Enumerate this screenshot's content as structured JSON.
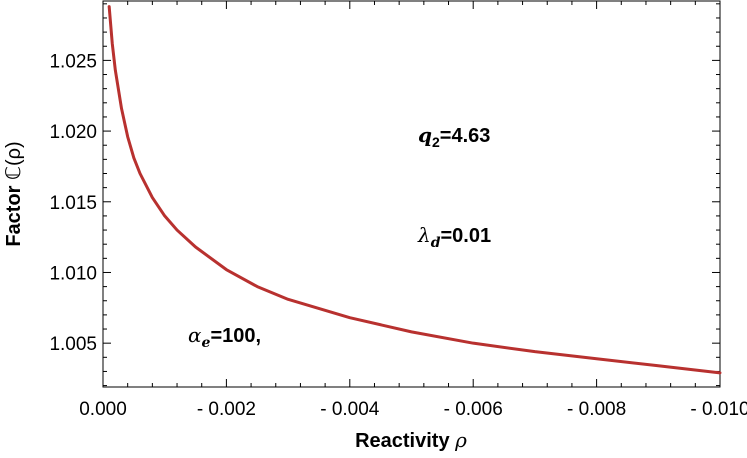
{
  "chart_data": {
    "type": "line",
    "title": "",
    "xlabel": "Reactivity",
    "xlabel_symbol": "ρ",
    "ylabel": "Factor",
    "ylabel_symbol": "ℂ(ρ)",
    "xlim": [
      0.0,
      -0.01
    ],
    "ylim": [
      1.0019,
      1.0292
    ],
    "xticks": [
      0.0,
      -0.002,
      -0.004,
      -0.006,
      -0.008,
      -0.01
    ],
    "xtick_labels": [
      "0.000",
      "- 0.002",
      "- 0.004",
      "- 0.006",
      "- 0.008",
      "- 0.010"
    ],
    "yticks": [
      1.005,
      1.01,
      1.015,
      1.02,
      1.025
    ],
    "ytick_labels": [
      "1.005",
      "1.010",
      "1.015",
      "1.020",
      "1.025"
    ],
    "grid": false,
    "series": [
      {
        "name": "C(rho)",
        "color": "#b8312f",
        "x": [
          -0.0001,
          -0.00015,
          -0.0002,
          -0.0003,
          -0.0004,
          -0.0005,
          -0.0006,
          -0.0008,
          -0.001,
          -0.0012,
          -0.0015,
          -0.002,
          -0.0025,
          -0.003,
          -0.004,
          -0.005,
          -0.006,
          -0.007,
          -0.008,
          -0.009,
          -0.01
        ],
        "y": [
          1.0288,
          1.0262,
          1.0243,
          1.0216,
          1.0196,
          1.0181,
          1.017,
          1.0153,
          1.014,
          1.013,
          1.0118,
          1.0102,
          1.009,
          1.0081,
          1.0068,
          1.0058,
          1.005,
          1.0044,
          1.0039,
          1.0034,
          1.0029
        ]
      }
    ],
    "annotations": [
      {
        "symbol": "q",
        "sub": "2",
        "text": "=4.63"
      },
      {
        "symbol": "λ",
        "sub": "d",
        "text": "=0.01"
      },
      {
        "symbol": "α",
        "sub": "e",
        "text": "=100,"
      }
    ]
  }
}
